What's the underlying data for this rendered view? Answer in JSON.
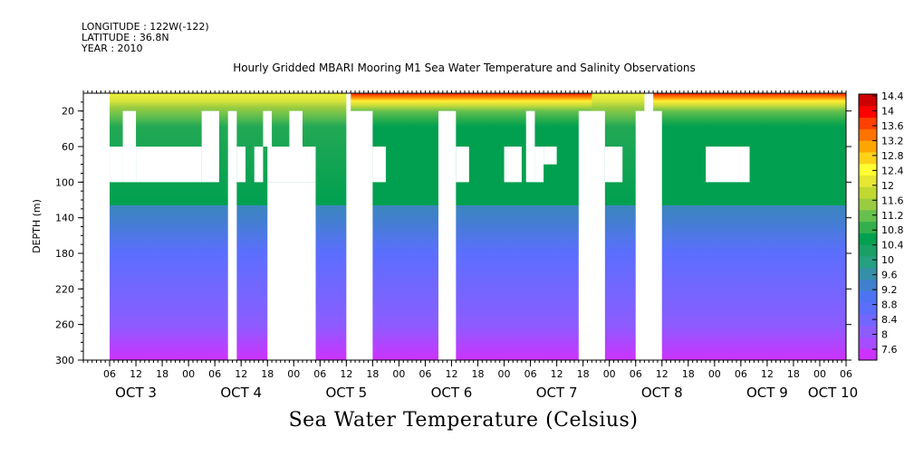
{
  "header": {
    "longitude": "LONGITUDE : 122W(-122)",
    "latitude": "LATITUDE : 36.8N",
    "year": "YEAR : 2010"
  },
  "chart_data": {
    "type": "heatmap",
    "title": "Hourly Gridded MBARI Mooring M1 Sea Water Temperature and Salinity Observations",
    "xlabel": "Sea Water Temperature (Celsius)",
    "ylabel": "DEPTH (m)",
    "x_hours_range": [
      0,
      174
    ],
    "ylim": [
      300,
      0
    ],
    "y_ticks": [
      20,
      60,
      100,
      140,
      180,
      220,
      260,
      300
    ],
    "x_hour_ticks": [
      "06",
      "12",
      "18",
      "00",
      "06",
      "12",
      "18",
      "00",
      "06",
      "12",
      "18",
      "00",
      "06",
      "12",
      "18",
      "00",
      "06",
      "12",
      "18",
      "00",
      "06",
      "12",
      "18",
      "00",
      "06",
      "12",
      "18",
      "00",
      "06",
      "12",
      "18",
      "00"
    ],
    "day_labels": [
      "OCT  3",
      "OCT  4",
      "OCT  5",
      "OCT  6",
      "OCT  7",
      "OCT  8",
      "OCT  9",
      "OCT 10"
    ],
    "colorbar": {
      "levels": [
        "7.6",
        "8",
        "8.4",
        "8.8",
        "9.2",
        "9.6",
        "10",
        "10.4",
        "10.8",
        "11.2",
        "11.6",
        "12",
        "12.4",
        "12.8",
        "13.2",
        "13.6",
        "14",
        "14.4"
      ],
      "colors": [
        "#cc33ff",
        "#a64dff",
        "#8c5cff",
        "#7366ff",
        "#5c6eff",
        "#4d73f2",
        "#4080cc",
        "#3390a6",
        "#26a080",
        "#1aa066",
        "#00a050",
        "#33b04d",
        "#66c04d",
        "#99cc40",
        "#c0d830",
        "#e6e633",
        "#ffff33",
        "#ffd21a",
        "#ffa500",
        "#ff7300",
        "#ff4000",
        "#ff0000",
        "#cc0000"
      ]
    },
    "temperature_profile": [
      {
        "depth": 0,
        "value": 12.0
      },
      {
        "depth": 20,
        "value": 11.4
      },
      {
        "depth": 40,
        "value": 10.6
      },
      {
        "depth": 60,
        "value": 10.2
      },
      {
        "depth": 100,
        "value": 9.9
      },
      {
        "depth": 140,
        "value": 9.4
      },
      {
        "depth": 180,
        "value": 9.0
      },
      {
        "depth": 220,
        "value": 8.6
      },
      {
        "depth": 260,
        "value": 8.2
      },
      {
        "depth": 300,
        "value": 7.8
      }
    ],
    "warm_surface_period_hours": [
      61,
      116,
      130,
      174
    ],
    "missing_data_regions": [
      {
        "h0": 0,
        "h1": 6,
        "d0": 0,
        "d1": 300
      },
      {
        "h0": 6,
        "h1": 9,
        "d0": 60,
        "d1": 100
      },
      {
        "h0": 9,
        "h1": 12,
        "d0": 20,
        "d1": 100
      },
      {
        "h0": 12,
        "h1": 27,
        "d0": 60,
        "d1": 100
      },
      {
        "h0": 27,
        "h1": 31,
        "d0": 20,
        "d1": 100
      },
      {
        "h0": 33,
        "h1": 35,
        "d0": 20,
        "d1": 300
      },
      {
        "h0": 35,
        "h1": 37,
        "d0": 60,
        "d1": 100
      },
      {
        "h0": 39,
        "h1": 41,
        "d0": 60,
        "d1": 100
      },
      {
        "h0": 41,
        "h1": 43,
        "d0": 20,
        "d1": 60
      },
      {
        "h0": 42,
        "h1": 53,
        "d0": 60,
        "d1": 100
      },
      {
        "h0": 42,
        "h1": 53,
        "d0": 100,
        "d1": 300
      },
      {
        "h0": 47,
        "h1": 50,
        "d0": 20,
        "d1": 60
      },
      {
        "h0": 60,
        "h1": 61,
        "d0": 0,
        "d1": 20
      },
      {
        "h0": 60,
        "h1": 66,
        "d0": 20,
        "d1": 300
      },
      {
        "h0": 66,
        "h1": 69,
        "d0": 60,
        "d1": 100
      },
      {
        "h0": 81,
        "h1": 85,
        "d0": 20,
        "d1": 300
      },
      {
        "h0": 85,
        "h1": 88,
        "d0": 60,
        "d1": 100
      },
      {
        "h0": 96,
        "h1": 100,
        "d0": 60,
        "d1": 100
      },
      {
        "h0": 101,
        "h1": 103,
        "d0": 20,
        "d1": 100
      },
      {
        "h0": 103,
        "h1": 105,
        "d0": 60,
        "d1": 100
      },
      {
        "h0": 105,
        "h1": 108,
        "d0": 60,
        "d1": 80
      },
      {
        "h0": 113,
        "h1": 119,
        "d0": 20,
        "d1": 300
      },
      {
        "h0": 119,
        "h1": 123,
        "d0": 60,
        "d1": 100
      },
      {
        "h0": 128,
        "h1": 130,
        "d0": 0,
        "d1": 20
      },
      {
        "h0": 126,
        "h1": 132,
        "d0": 20,
        "d1": 300
      },
      {
        "h0": 142,
        "h1": 152,
        "d0": 60,
        "d1": 100
      }
    ]
  }
}
